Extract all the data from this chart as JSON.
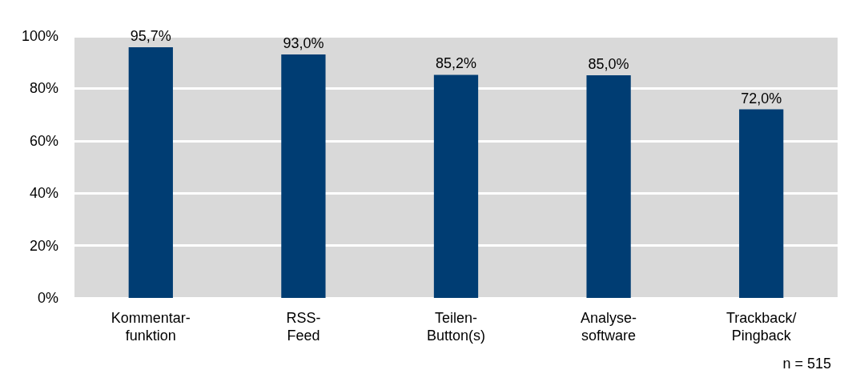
{
  "chart_data": {
    "type": "bar",
    "categories": [
      "Kommentar-\nfunktion",
      "RSS-\nFeed",
      "Teilen-\nButton(s)",
      "Analyse-\nsoftware",
      "Trackback/\nPingback"
    ],
    "values": [
      95.7,
      93.0,
      85.2,
      85.0,
      72.0
    ],
    "value_labels": [
      "95,7%",
      "93,0%",
      "85,2%",
      "85,0%",
      "72,0%"
    ],
    "color": "#003d73",
    "ylim": [
      0,
      100
    ],
    "yticks": [
      {
        "value": 0,
        "label": "0%"
      },
      {
        "value": 20,
        "label": "20%"
      },
      {
        "value": 40,
        "label": "40%"
      },
      {
        "value": 60,
        "label": "60%"
      },
      {
        "value": 80,
        "label": "80%"
      },
      {
        "value": 100,
        "label": "100%"
      }
    ],
    "grid": "y",
    "annotations": [
      "n = 515"
    ]
  }
}
